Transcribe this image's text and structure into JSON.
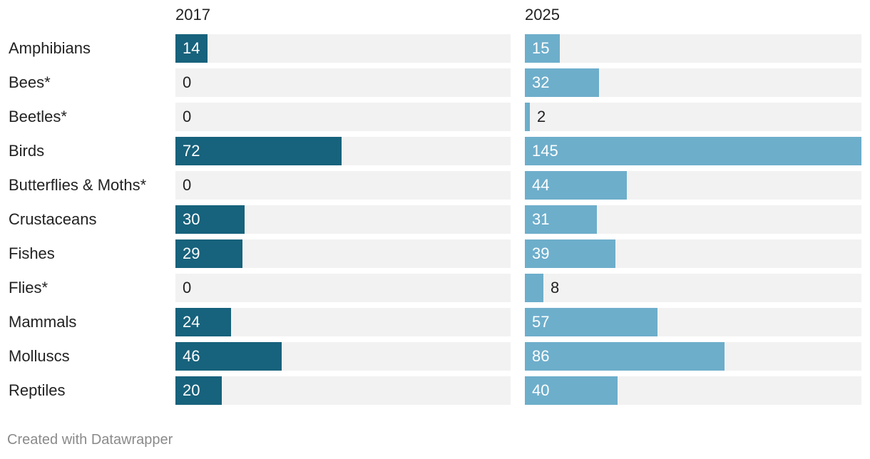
{
  "chart_data": {
    "type": "bar",
    "orientation": "horizontal",
    "categories": [
      "Amphibians",
      "Bees*",
      "Beetles*",
      "Birds",
      "Butterflies & Moths*",
      "Crustaceans",
      "Fishes",
      "Flies*",
      "Mammals",
      "Molluscs",
      "Reptiles"
    ],
    "series": [
      {
        "name": "2017",
        "values": [
          14,
          0,
          0,
          72,
          0,
          30,
          29,
          0,
          24,
          46,
          20
        ],
        "color": "#17627c"
      },
      {
        "name": "2025",
        "values": [
          15,
          32,
          2,
          145,
          44,
          31,
          39,
          8,
          57,
          86,
          40
        ],
        "color": "#6daecb"
      }
    ],
    "xlim": [
      0,
      145
    ],
    "title": "",
    "xlabel": "",
    "ylabel": "",
    "track_color": "#f2f2f2"
  },
  "footer": {
    "credit": "Created with Datawrapper"
  }
}
